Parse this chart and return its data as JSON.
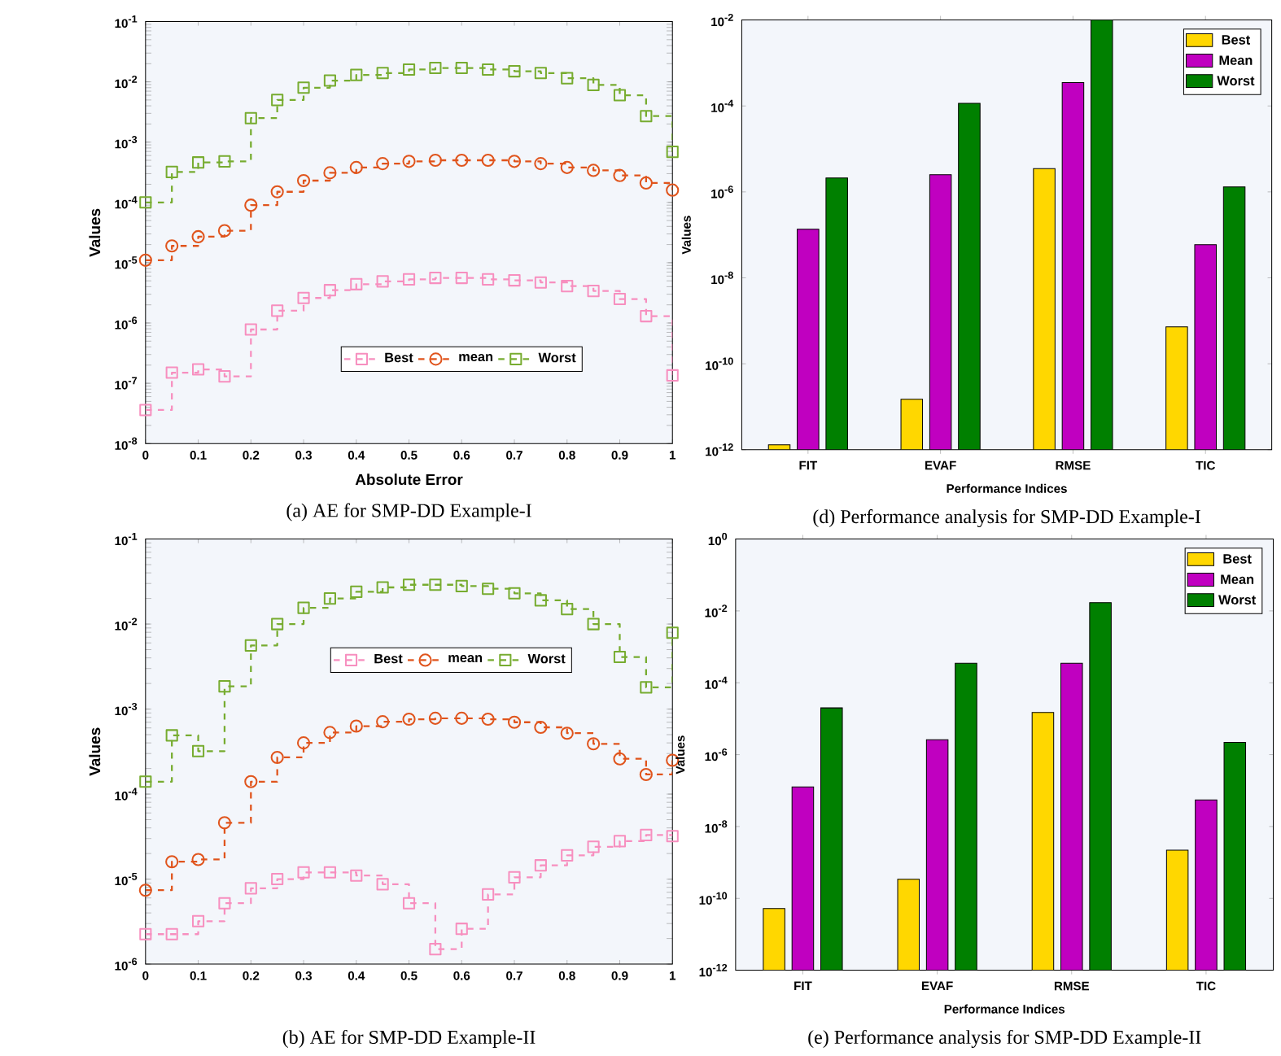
{
  "chart_data": [
    {
      "type": "step",
      "xlabel": "Absolute Error",
      "ylabel": "Values",
      "annotations": [
        "(a) AE for SMP-DD Example-I"
      ],
      "log": "y",
      "legend": "bottom",
      "line_style": "dashed",
      "x": [
        0,
        0.05,
        0.1,
        0.15,
        0.2,
        0.25,
        0.3,
        0.35,
        0.4,
        0.45,
        0.5,
        0.55,
        0.6,
        0.65,
        0.7,
        0.75,
        0.8,
        0.85,
        0.9,
        0.95,
        1
      ],
      "xlim": [
        0,
        1
      ],
      "ylim": [
        1e-08,
        0.1
      ],
      "xticks": [
        0,
        0.1,
        0.2,
        0.3,
        0.4,
        0.5,
        0.6,
        0.7,
        0.8,
        0.9,
        1
      ],
      "yticks": [
        {
          "value": 1e-08,
          "label": "10$^{-8}$"
        },
        {
          "value": 1e-07,
          "label": "10$^{-7}$"
        },
        {
          "value": 1e-06,
          "label": "10$^{-6}$"
        },
        {
          "value": 1e-05,
          "label": "10$^{-5}$"
        },
        {
          "value": 0.0001,
          "label": "10$^{-4}$"
        },
        {
          "value": 0.001,
          "label": "10$^{-3}$"
        },
        {
          "value": 0.01,
          "label": "10$^{-2}$"
        },
        {
          "value": 0.1,
          "label": "10$^{-1}$"
        }
      ],
      "series": [
        {
          "name": "Best",
          "color": "#f78fbf",
          "marker": "square",
          "values": [
            3.6e-08,
            1.5e-07,
            1.7e-07,
            1.3e-07,
            7.8e-07,
            1.6e-06,
            2.6e-06,
            3.5e-06,
            4.4e-06,
            4.9e-06,
            5.3e-06,
            5.6e-06,
            5.6e-06,
            5.3e-06,
            5.1e-06,
            4.7e-06,
            4.1e-06,
            3.4e-06,
            2.5e-06,
            1.3e-06,
            1.35e-07
          ]
        },
        {
          "name": "mean",
          "color": "#e0541c",
          "marker": "circle",
          "values": [
            1.1e-05,
            1.9e-05,
            2.7e-05,
            3.4e-05,
            9e-05,
            0.00015,
            0.00023,
            0.00031,
            0.00038,
            0.00044,
            0.00048,
            0.0005,
            0.0005,
            0.0005,
            0.00048,
            0.00044,
            0.00038,
            0.00034,
            0.00028,
            0.00021,
            0.00016
          ]
        },
        {
          "name": "Worst",
          "color": "#77ac30",
          "marker": "square",
          "values": [
            0.0001,
            0.00032,
            0.00046,
            0.00048,
            0.0025,
            0.005,
            0.008,
            0.0105,
            0.013,
            0.014,
            0.016,
            0.017,
            0.017,
            0.016,
            0.015,
            0.014,
            0.0115,
            0.0089,
            0.006,
            0.0027,
            0.00069
          ]
        }
      ]
    },
    {
      "type": "bar",
      "xlabel": "Performance Indices",
      "ylabel": "Values",
      "annotations": [
        "(d) Performance analysis for SMP-DD Example-I"
      ],
      "log": "y",
      "legend": "top right",
      "categories": [
        "FIT",
        "EVAF",
        "RMSE",
        "TIC"
      ],
      "ylim": [
        1e-12,
        0.01
      ],
      "yticks": [
        {
          "value": 1e-12,
          "label": "10$^{-12}$"
        },
        {
          "value": 1e-10,
          "label": "10$^{-10}$"
        },
        {
          "value": 1e-08,
          "label": "10$^{-8}$"
        },
        {
          "value": 1e-06,
          "label": "10$^{-6}$"
        },
        {
          "value": 0.0001,
          "label": "10$^{-4}$"
        },
        {
          "value": 0.01,
          "label": "10$^{-2}$"
        }
      ],
      "series": [
        {
          "name": "Best",
          "color": "#ffd700",
          "values": [
            1.3e-12,
            1.5e-11,
            3.5e-06,
            7.2e-10
          ]
        },
        {
          "name": "Mean",
          "color": "#c000c0",
          "values": [
            1.35e-07,
            2.5e-06,
            0.00035,
            5.9e-08
          ]
        },
        {
          "name": "Worst",
          "color": "#008000",
          "values": [
            2.1e-06,
            0.000115,
            0.01,
            1.3e-06
          ]
        }
      ]
    },
    {
      "type": "step",
      "ylabel": "Values",
      "annotations": [
        "(b) AE for SMP-DD Example-II"
      ],
      "log": "y",
      "legend": "top",
      "line_style": "dashed",
      "x": [
        0,
        0.05,
        0.1,
        0.15,
        0.2,
        0.25,
        0.3,
        0.35,
        0.4,
        0.45,
        0.5,
        0.55,
        0.6,
        0.65,
        0.7,
        0.75,
        0.8,
        0.85,
        0.9,
        0.95,
        1
      ],
      "xlim": [
        0,
        1
      ],
      "ylim": [
        1e-06,
        0.1
      ],
      "xticks": [
        0,
        0.1,
        0.2,
        0.3,
        0.4,
        0.5,
        0.6,
        0.7,
        0.8,
        0.9,
        1
      ],
      "yticks": [
        {
          "value": 1e-06,
          "label": "10$^{-6}$"
        },
        {
          "value": 1e-05,
          "label": "10$^{-5}$"
        },
        {
          "value": 0.0001,
          "label": "10$^{-4}$"
        },
        {
          "value": 0.001,
          "label": "10$^{-3}$"
        },
        {
          "value": 0.01,
          "label": "10$^{-2}$"
        },
        {
          "value": 0.1,
          "label": "10$^{-1}$"
        }
      ],
      "series": [
        {
          "name": "Best",
          "color": "#f78fbf",
          "marker": "square",
          "values": [
            2.25e-06,
            2.25e-06,
            3.2e-06,
            5.2e-06,
            7.8e-06,
            1e-05,
            1.2e-05,
            1.2e-05,
            1.1e-05,
            8.7e-06,
            5.2e-06,
            1.5e-06,
            2.6e-06,
            6.6e-06,
            1.05e-05,
            1.45e-05,
            1.9e-05,
            2.4e-05,
            2.8e-05,
            3.3e-05,
            3.2e-05
          ]
        },
        {
          "name": "mean",
          "color": "#e0541c",
          "marker": "circle",
          "values": [
            7.4e-06,
            1.6e-05,
            1.7e-05,
            4.6e-05,
            0.00014,
            0.00027,
            0.0004,
            0.00053,
            0.00063,
            0.00071,
            0.00076,
            0.00078,
            0.00078,
            0.00076,
            0.0007,
            0.00061,
            0.00052,
            0.00039,
            0.00026,
            0.00017,
            0.00025
          ]
        },
        {
          "name": "Worst",
          "color": "#77ac30",
          "marker": "square",
          "values": [
            0.00014,
            0.00049,
            0.00032,
            0.00185,
            0.0056,
            0.01,
            0.0155,
            0.02,
            0.024,
            0.027,
            0.029,
            0.029,
            0.028,
            0.026,
            0.023,
            0.019,
            0.015,
            0.01,
            0.0041,
            0.0018,
            0.0079
          ]
        }
      ]
    },
    {
      "type": "bar",
      "xlabel": "Performance Indices",
      "ylabel": "Values",
      "annotations": [
        "(e) Performance analysis for SMP-DD Example-II"
      ],
      "log": "y",
      "legend": "top right",
      "categories": [
        "FIT",
        "EVAF",
        "RMSE",
        "TIC"
      ],
      "ylim": [
        1e-12,
        1
      ],
      "yticks": [
        {
          "value": 1e-12,
          "label": "10$^{-12}$"
        },
        {
          "value": 1e-10,
          "label": "10$^{-10}$"
        },
        {
          "value": 1e-08,
          "label": "10$^{-8}$"
        },
        {
          "value": 1e-06,
          "label": "10$^{-6}$"
        },
        {
          "value": 0.0001,
          "label": "10$^{-4}$"
        },
        {
          "value": 0.01,
          "label": "10$^{-2}$"
        },
        {
          "value": 1,
          "label": "10$^{0}$"
        }
      ],
      "series": [
        {
          "name": "Best",
          "color": "#ffd700",
          "values": [
            5.2e-11,
            3.4e-10,
            1.5e-05,
            2.2e-09
          ]
        },
        {
          "name": "Mean",
          "color": "#c000c0",
          "values": [
            1.26e-07,
            2.6e-06,
            0.00035,
            5.5e-08
          ]
        },
        {
          "name": "Worst",
          "color": "#008000",
          "values": [
            2e-05,
            0.00035,
            0.017,
            2.2e-06
          ]
        }
      ]
    }
  ]
}
